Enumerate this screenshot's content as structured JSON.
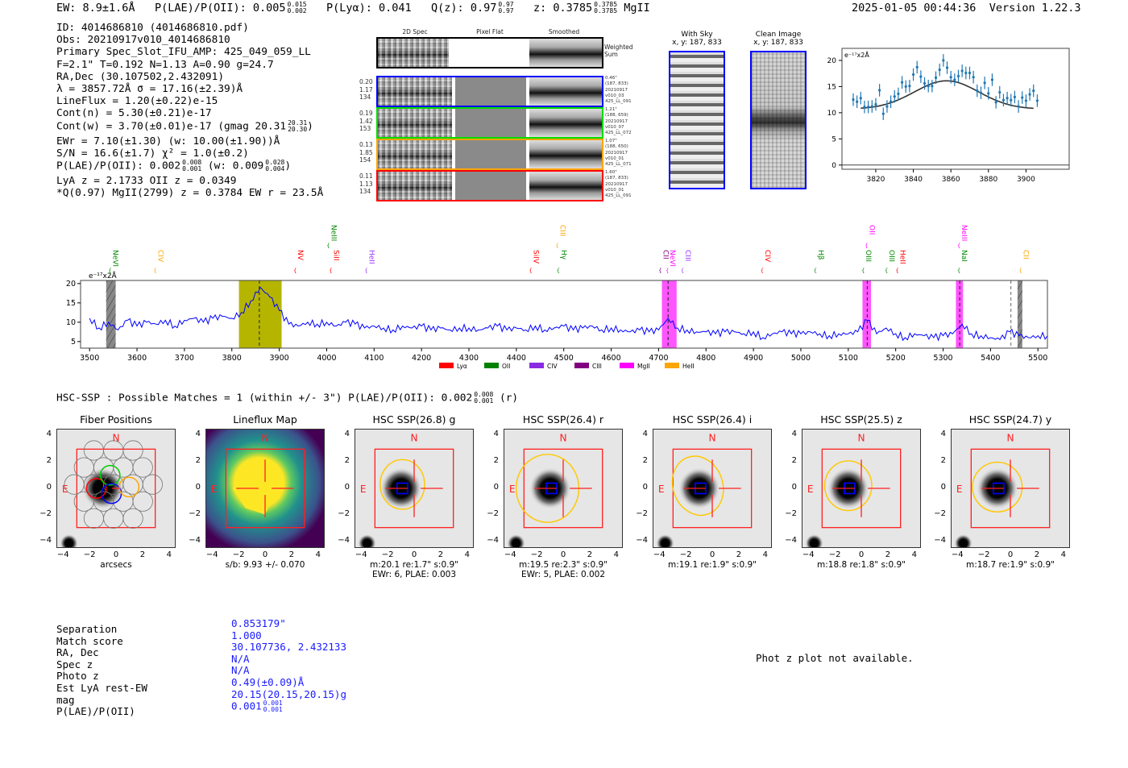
{
  "header": {
    "ew": "EW: 8.9±1.6Å",
    "plae_label": "P(LAE)/P(OII): 0.005",
    "plae_hi": "0.015",
    "plae_lo": "0.002",
    "plya": "P(Lyα): 0.041",
    "qz": "Q(z): 0.97",
    "qz_hi": "0.97",
    "qz_lo": "0.97",
    "z": "z: 0.3785",
    "z_hi": "0.3785",
    "z_lo": "0.3785",
    "z_line": "MgII",
    "datetime": "2025-01-05 00:44:36",
    "version": "Version 1.22.3"
  },
  "info": {
    "lines": [
      "ID: 4014686810 (4014686810.pdf)",
      "Obs: 20210917v010_4014686810",
      "Primary Spec_Slot_IFU_AMP: 425_049_059_LL",
      "F=2.1\"  T=0.192  N=1.13  A=0.90  g=24.7",
      "RA,Dec (30.107502,2.432091)",
      "λ = 3857.72Å  σ = 17.16(±2.39)Å",
      "LineFlux = 1.20(±0.22)e-15",
      "Cont(n) = 5.30(±0.21)e-17"
    ],
    "contw": "Cont(w) = 3.70(±0.01)e-17 (gmag 20.31",
    "contw_hi": "20.31",
    "contw_lo": "20.30",
    "contw_end": ")",
    "ewr": "EWr = 7.10(±1.30) (w: 10.00(±1.90))Å",
    "sn": "S/N = 16.6(±1.7)  χ² = 1.0(±0.2)",
    "plae": "P(LAE)/P(OII): 0.002",
    "plae_hi": "0.008",
    "plae_lo": "0.001",
    "plae_w": "(w: 0.009",
    "plae_w_hi": "0.028",
    "plae_w_lo": "0.004",
    "plae_w_end": ")",
    "lya": "LyA z = 2.1733  OII z = 0.0349",
    "q": "*Q(0.97) MgII(2799) z = 0.3784  EW r = 23.5Å"
  },
  "spec2d": {
    "col_headers": [
      "2D Spec",
      "Pixel Flat",
      "Smoothed"
    ],
    "weighted_label": "Weighted Sum",
    "rows": [
      {
        "color": "#0000ff",
        "nums": [
          "0.20",
          "1.17",
          "134"
        ],
        "info": [
          "0.46\"",
          "(187, 833)",
          "20210917",
          "v010_03",
          "425_LL_091"
        ]
      },
      {
        "color": "#00dd00",
        "nums": [
          "0.19",
          "1.42",
          "153"
        ],
        "info": [
          "1.21\"",
          "(188, 659)",
          "20210917",
          "v010_07",
          "425_LL_072"
        ]
      },
      {
        "color": "#ffa500",
        "nums": [
          "0.13",
          "1.85",
          "154"
        ],
        "info": [
          "1.07\"",
          "(188, 650)",
          "20210917",
          "v010_01",
          "425_LL_071"
        ]
      },
      {
        "color": "#ff0000",
        "nums": [
          "0.11",
          "1.13",
          "134"
        ],
        "info": [
          "1.60\"",
          "(187, 833)",
          "20210917",
          "v010_01",
          "425_LL_091"
        ]
      }
    ]
  },
  "cutouts_top": {
    "with_sky": "With Sky",
    "with_sky_xy": "x, y: 187, 833",
    "clean": "Clean Image",
    "clean_xy": "x, y: 187, 833"
  },
  "chart_data": [
    {
      "type": "scatter",
      "title": "",
      "ylabel": "e⁻¹⁷x2Å",
      "xlim": [
        3802,
        3923
      ],
      "ylim": [
        -0.8,
        22.3
      ],
      "xticks": [
        3820,
        3840,
        3860,
        3880,
        3900
      ],
      "yticks": [
        0,
        5,
        10,
        15,
        20
      ],
      "x_start": 3808,
      "x_step": 2,
      "values": [
        12.5,
        12.1,
        12.8,
        11.1,
        11.1,
        11.2,
        11.6,
        14.3,
        9.8,
        11.2,
        12.1,
        13.1,
        13.6,
        15.8,
        15.0,
        15.1,
        17.3,
        18.7,
        16.9,
        15.6,
        15.1,
        15.1,
        16.7,
        18.2,
        20.0,
        18.6,
        16.8,
        16.3,
        17.0,
        18.0,
        17.6,
        17.6,
        16.8,
        14.2,
        13.8,
        15.7,
        13.7,
        16.3,
        12.0,
        13.9,
        12.4,
        12.8,
        12.4,
        13.0,
        11.2,
        12.9,
        12.3,
        13.5,
        14.2,
        12.3
      ],
      "error": 1.2,
      "model": {
        "type": "gaussian",
        "center": 3857.72,
        "sigma": 17.16,
        "baseline": 10.7,
        "amplitude": 5.4,
        "range": [
          3812,
          3904
        ]
      }
    },
    {
      "type": "line",
      "ylabel": "e⁻¹⁷x2Å",
      "xlim": [
        3481,
        5520
      ],
      "ylim": [
        3.3,
        20.8
      ],
      "xticks": [
        3500,
        3600,
        3700,
        3800,
        3900,
        4000,
        4100,
        4200,
        4300,
        4400,
        4500,
        4600,
        4700,
        4800,
        4900,
        5000,
        5100,
        5200,
        5300,
        5400,
        5500
      ],
      "yticks": [
        5,
        10,
        15,
        20
      ],
      "x_start": 3480,
      "x_step": 20,
      "values": [
        9.5,
        11,
        8.5,
        10,
        8,
        10.5,
        9,
        10,
        9.5,
        10.5,
        9,
        10.5,
        11,
        10,
        11,
        11.5,
        11,
        12.5,
        15.5,
        19,
        16.5,
        13,
        9.5,
        9,
        10,
        9.5,
        10,
        9,
        10,
        9.5,
        8.5,
        9,
        8.5,
        8,
        9,
        8.5,
        9,
        8,
        8.5,
        8,
        8.5,
        8.5,
        8,
        8.5,
        9,
        8,
        8.5,
        8,
        9,
        8,
        8.5,
        9,
        8,
        8.5,
        9,
        8,
        8.5,
        8,
        7.5,
        8,
        7.5,
        8,
        11,
        8.5,
        8,
        7.5,
        7.5,
        7,
        7.5,
        7.5,
        7,
        7.5,
        6,
        7,
        7.5,
        7,
        7,
        7.5,
        7,
        6.5,
        7,
        7,
        7.5,
        10.5,
        7,
        8.5,
        7,
        6,
        7,
        6.5,
        6,
        6.5,
        7,
        9.5,
        7,
        6.5,
        6,
        5.5,
        7.5,
        6.5,
        6,
        6.5,
        6.5
      ],
      "series_color": "#0000ff",
      "regions": [
        {
          "from": 3535,
          "to": 3555,
          "color": "#888888"
        },
        {
          "from": 3815,
          "to": 3905,
          "color": "#b5b500"
        },
        {
          "from": 4707,
          "to": 4738,
          "color": "#ff55ff"
        },
        {
          "from": 5130,
          "to": 5148,
          "color": "#ff55ff"
        },
        {
          "from": 5327,
          "to": 5342,
          "color": "#ff55ff"
        },
        {
          "from": 5457,
          "to": 5467,
          "color": "#888888"
        }
      ],
      "dashed": [
        3858,
        4720,
        5140,
        5335,
        5443
      ],
      "lines": [
        {
          "name": "NeVI",
          "wave": 3545,
          "color": "#008800",
          "high": false
        },
        {
          "name": "CIV",
          "wave": 3640,
          "color": "#ffa500",
          "high": false
        },
        {
          "name": "NV",
          "wave": 3935,
          "color": "#ff0000",
          "high": false
        },
        {
          "name": "NeIII",
          "wave": 4005,
          "color": "#008800",
          "high": true
        },
        {
          "name": "SiII",
          "wave": 4010,
          "color": "#ff0000",
          "high": false
        },
        {
          "name": "HeII",
          "wave": 4085,
          "color": "#9933ff",
          "high": false
        },
        {
          "name": "SiIV",
          "wave": 4432,
          "color": "#ff0000",
          "high": false
        },
        {
          "name": "CIII",
          "wave": 4488,
          "color": "#ffa500",
          "high": true
        },
        {
          "name": "Hγ",
          "wave": 4490,
          "color": "#008800",
          "high": false
        },
        {
          "name": "CII",
          "wave": 4705,
          "color": "#800080",
          "high": false
        },
        {
          "name": "NeVI",
          "wave": 4720,
          "color": "#ff00ff",
          "high": false
        },
        {
          "name": "CIII",
          "wave": 4752,
          "color": "#9933ff",
          "high": false
        },
        {
          "name": "CIV",
          "wave": 4920,
          "color": "#ff0000",
          "high": false
        },
        {
          "name": "Hβ",
          "wave": 5032,
          "color": "#008800",
          "high": false
        },
        {
          "name": "OIII",
          "wave": 5133,
          "color": "#008800",
          "high": false
        },
        {
          "name": "OII",
          "wave": 5140,
          "color": "#ff00ff",
          "high": true
        },
        {
          "name": "OIII",
          "wave": 5182,
          "color": "#008800",
          "high": false
        },
        {
          "name": "HeII",
          "wave": 5205,
          "color": "#ff0000",
          "high": false
        },
        {
          "name": "NeIII",
          "wave": 5335,
          "color": "#ff00ff",
          "high": true
        },
        {
          "name": "NaI",
          "wave": 5335,
          "color": "#008800",
          "high": false
        },
        {
          "name": "CII",
          "wave": 5465,
          "color": "#ffa500",
          "high": false
        }
      ],
      "legend": [
        {
          "name": "Lyα",
          "color": "#ff0000"
        },
        {
          "name": "OII",
          "color": "#008000"
        },
        {
          "name": "CIV",
          "color": "#8a2be2"
        },
        {
          "name": "CIII",
          "color": "#800080"
        },
        {
          "name": "MgII",
          "color": "#ff00ff"
        },
        {
          "name": "HeII",
          "color": "#ffa500"
        }
      ],
      "legend_position": "bottom"
    }
  ],
  "hsc": {
    "title": "HSC-SSP : Possible Matches = 1 (within +/- 3\")  P(LAE)/P(OII): 0.002",
    "title_hi": "0.008",
    "title_lo": "0.001",
    "title_end": "(r)",
    "north": "N",
    "east": "E",
    "ticks": [
      "−4",
      "−2",
      "0",
      "2",
      "4"
    ],
    "panels": [
      {
        "title": "Fiber Positions",
        "caption": [
          "arcsecs"
        ]
      },
      {
        "title": "Lineflux Map",
        "caption": [
          "s/b: 9.93 +/- 0.070"
        ]
      },
      {
        "title": "HSC SSP(26.8) g",
        "caption": [
          "m:20.1  re:1.7\"  s:0.9\"",
          "EWr: 6, PLAE: 0.003"
        ]
      },
      {
        "title": "HSC SSP(26.4) r",
        "caption": [
          "m:19.5  re:2.3\"  s:0.9\"",
          "EWr: 5, PLAE: 0.002"
        ]
      },
      {
        "title": "HSC SSP(26.4) i",
        "caption": [
          "m:19.1  re:1.9\"  s:0.9\""
        ]
      },
      {
        "title": "HSC SSP(25.5) z",
        "caption": [
          "m:18.8  re:1.8\"  s:0.9\""
        ]
      },
      {
        "title": "HSC SSP(24.7) y",
        "caption": [
          "m:18.7  re:1.9\"  s:0.9\""
        ]
      }
    ]
  },
  "match": {
    "labels": [
      "Separation",
      "Match score",
      "RA, Dec",
      "Spec z",
      "Photo z",
      "Est LyA rest-EW",
      "mag",
      "P(LAE)/P(OII)"
    ],
    "values": [
      "0.853179\"",
      "1.000",
      "30.107736, 2.432133",
      "N/A",
      "N/A",
      "0.49(±0.09)Å",
      "20.15(20.15,20.15)g",
      "0.001"
    ],
    "plae_hi": "0.001",
    "plae_lo": "0.001"
  },
  "photz_msg": "Phot z plot not available."
}
